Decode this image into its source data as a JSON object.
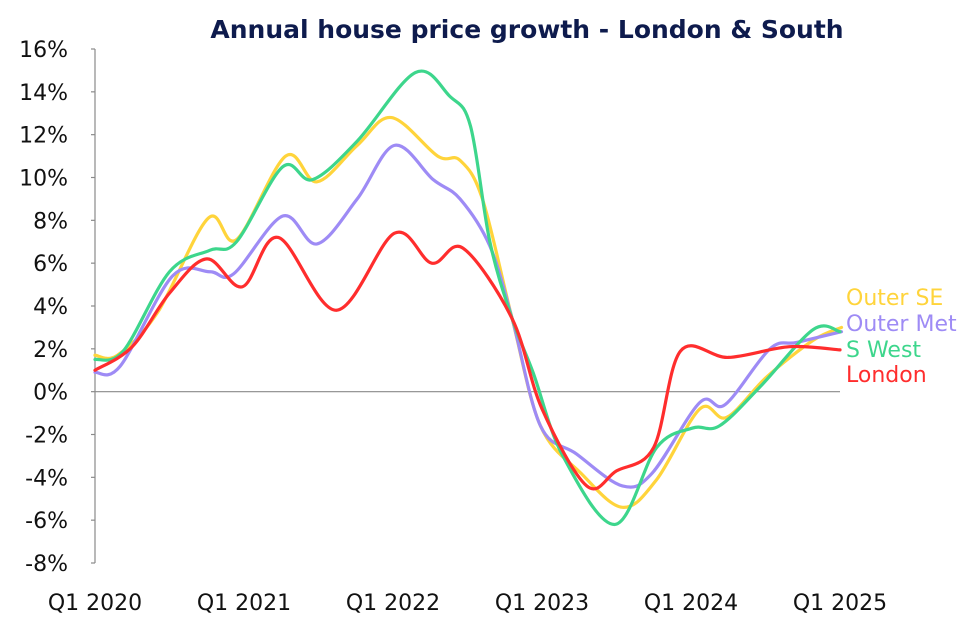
{
  "chart_data": {
    "type": "line",
    "title": "Annual house price growth - London & South",
    "xlabel": "",
    "ylabel": "",
    "ylim": [
      -8,
      16
    ],
    "xlim": [
      2020,
      2025
    ],
    "y_ticks": [
      "16%",
      "14%",
      "12%",
      "10%",
      "8%",
      "6%",
      "4%",
      "2%",
      "0%",
      "-2%",
      "-4%",
      "-6%",
      "-8%"
    ],
    "y_tick_values": [
      16,
      14,
      12,
      10,
      8,
      6,
      4,
      2,
      0,
      -2,
      -4,
      -6,
      -8
    ],
    "x_ticks": [
      "Q1 2020",
      "Q1 2021",
      "Q1 2022",
      "Q1 2023",
      "Q1 2024",
      "Q1 2025"
    ],
    "x_tick_values": [
      2020,
      2021,
      2022,
      2023,
      2024,
      2025
    ],
    "legend_placement": "right (end-of-line labels)",
    "series": [
      {
        "name": "Outer SE",
        "color": "#FFD43B",
        "points": [
          [
            2020.0,
            1.7
          ],
          [
            2020.15,
            1.7
          ],
          [
            2020.42,
            3.7
          ],
          [
            2020.76,
            8.1
          ],
          [
            2020.95,
            7.1
          ],
          [
            2021.28,
            11.0
          ],
          [
            2021.49,
            9.8
          ],
          [
            2021.76,
            11.5
          ],
          [
            2021.99,
            12.8
          ],
          [
            2022.3,
            11.0
          ],
          [
            2022.45,
            10.8
          ],
          [
            2022.6,
            9.0
          ],
          [
            2022.8,
            3.4
          ],
          [
            2022.99,
            -1.6
          ],
          [
            2023.26,
            -3.8
          ],
          [
            2023.54,
            -5.4
          ],
          [
            2023.77,
            -4.1
          ],
          [
            2024.06,
            -0.8
          ],
          [
            2024.24,
            -1.2
          ],
          [
            2024.51,
            0.7
          ],
          [
            2024.82,
            2.4
          ],
          [
            2025.01,
            3.0
          ]
        ]
      },
      {
        "name": "Outer Met",
        "color": "#9E8BF5",
        "points": [
          [
            2020.0,
            0.9
          ],
          [
            2020.17,
            1.2
          ],
          [
            2020.52,
            5.4
          ],
          [
            2020.77,
            5.6
          ],
          [
            2020.93,
            5.5
          ],
          [
            2021.26,
            8.2
          ],
          [
            2021.49,
            6.9
          ],
          [
            2021.76,
            9.0
          ],
          [
            2022.01,
            11.5
          ],
          [
            2022.27,
            9.9
          ],
          [
            2022.45,
            9.0
          ],
          [
            2022.65,
            6.8
          ],
          [
            2022.8,
            3.4
          ],
          [
            2022.99,
            -1.6
          ],
          [
            2023.23,
            -2.9
          ],
          [
            2023.54,
            -4.4
          ],
          [
            2023.74,
            -3.8
          ],
          [
            2024.06,
            -0.5
          ],
          [
            2024.23,
            -0.6
          ],
          [
            2024.53,
            2.0
          ],
          [
            2024.71,
            2.3
          ],
          [
            2025.01,
            2.8
          ]
        ]
      },
      {
        "name": "S West",
        "color": "#3DD68C",
        "points": [
          [
            2020.0,
            1.5
          ],
          [
            2020.19,
            1.9
          ],
          [
            2020.5,
            5.6
          ],
          [
            2020.77,
            6.6
          ],
          [
            2020.95,
            7.0
          ],
          [
            2021.26,
            10.5
          ],
          [
            2021.46,
            9.9
          ],
          [
            2021.76,
            11.7
          ],
          [
            2022.15,
            14.9
          ],
          [
            2022.38,
            13.8
          ],
          [
            2022.52,
            12.4
          ],
          [
            2022.65,
            7.0
          ],
          [
            2022.8,
            3.4
          ],
          [
            2022.94,
            0.9
          ],
          [
            2023.14,
            -3.0
          ],
          [
            2023.49,
            -6.2
          ],
          [
            2023.77,
            -2.6
          ],
          [
            2024.01,
            -1.7
          ],
          [
            2024.19,
            -1.6
          ],
          [
            2024.46,
            0.2
          ],
          [
            2024.82,
            2.9
          ],
          [
            2025.0,
            2.8
          ]
        ]
      },
      {
        "name": "London",
        "color": "#FF2D2D",
        "points": [
          [
            2020.0,
            1.0
          ],
          [
            2020.25,
            2.1
          ],
          [
            2020.5,
            4.6
          ],
          [
            2020.75,
            6.2
          ],
          [
            2020.99,
            4.9
          ],
          [
            2021.23,
            7.2
          ],
          [
            2021.62,
            3.8
          ],
          [
            2022.01,
            7.4
          ],
          [
            2022.26,
            6.0
          ],
          [
            2022.47,
            6.7
          ],
          [
            2022.8,
            3.4
          ],
          [
            2023.0,
            -0.8
          ],
          [
            2023.3,
            -4.4
          ],
          [
            2023.5,
            -3.7
          ],
          [
            2023.75,
            -2.6
          ],
          [
            2023.93,
            1.9
          ],
          [
            2024.25,
            1.6
          ],
          [
            2024.66,
            2.1
          ],
          [
            2025.0,
            1.95
          ]
        ]
      }
    ]
  }
}
